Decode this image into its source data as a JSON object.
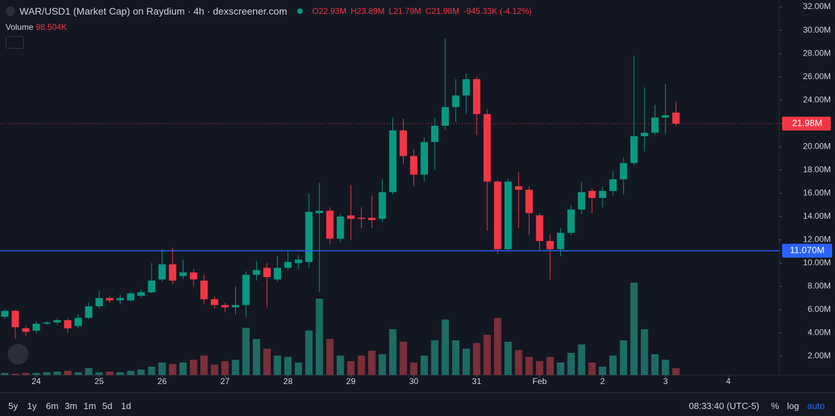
{
  "header": {
    "title": "WAR/USD1 (Market Cap) on Raydium · 4h · dexscreener.com",
    "ohlc": [
      "O22.93M",
      "H23.89M",
      "L21.79M",
      "C21.98M",
      "-945.33K (-4.12%)"
    ],
    "volume_label": "Volume",
    "volume_value": "98.504K"
  },
  "chart_data": {
    "type": "candlestick",
    "up_color": "#089981",
    "down_color": "#f23645",
    "volume_up_color": "#1e6b63",
    "volume_down_color": "#7a2f3a",
    "ylim": [
      0.39,
      32.6
    ],
    "yticks": [
      {
        "value": 2,
        "label": "2.00M"
      },
      {
        "value": 4,
        "label": "4.00M"
      },
      {
        "value": 6,
        "label": "6.00M"
      },
      {
        "value": 8,
        "label": "8.00M"
      },
      {
        "value": 10,
        "label": "10.00M"
      },
      {
        "value": 12,
        "label": "12.00M"
      },
      {
        "value": 14,
        "label": "14.00M"
      },
      {
        "value": 16,
        "label": "16.00M"
      },
      {
        "value": 18,
        "label": "18.00M"
      },
      {
        "value": 20,
        "label": "20.00M"
      },
      {
        "value": 22,
        "label": "22.00M"
      },
      {
        "value": 24,
        "label": "24.00M"
      },
      {
        "value": 26,
        "label": "26.00M"
      },
      {
        "value": 28,
        "label": "28.00M"
      },
      {
        "value": 30,
        "label": "30.00M"
      },
      {
        "value": 32,
        "label": "32.00M"
      }
    ],
    "xlim": [
      -0.46,
      73.86
    ],
    "xticks": [
      {
        "value": 3,
        "label": "24"
      },
      {
        "value": 9,
        "label": "25"
      },
      {
        "value": 15,
        "label": "26"
      },
      {
        "value": 21,
        "label": "27"
      },
      {
        "value": 27,
        "label": "28"
      },
      {
        "value": 33,
        "label": "29"
      },
      {
        "value": 39,
        "label": "30"
      },
      {
        "value": 45,
        "label": "31"
      },
      {
        "value": 51,
        "label": "Feb"
      },
      {
        "value": 57,
        "label": "2"
      },
      {
        "value": 63,
        "label": "3"
      },
      {
        "value": 69,
        "label": "4"
      }
    ],
    "vlim": [
      0,
      5400
    ],
    "open": [
      5.4,
      5.9,
      4.4,
      4.2,
      4.8,
      4.9,
      5.1,
      4.6,
      5.3,
      6.3,
      7.0,
      6.8,
      6.8,
      7.2,
      7.5,
      8.6,
      9.9,
      8.9,
      9.2,
      8.5,
      6.9,
      6.4,
      6.2,
      6.4,
      9.0,
      9.6,
      8.6,
      9.6,
      10.0,
      10.1,
      14.3,
      14.5,
      12.1,
      14.1,
      13.9,
      13.9,
      13.8,
      16.1,
      21.4,
      19.2,
      17.6,
      20.4,
      21.8,
      23.4,
      24.4,
      25.8,
      22.8,
      17.0,
      11.2,
      16.6,
      16.3,
      14.1,
      11.9,
      11.2,
      12.6,
      14.6,
      16.2,
      15.6,
      16.2,
      17.2,
      18.6,
      20.9,
      21.2,
      22.5,
      22.93
    ],
    "high": [
      6.0,
      6.0,
      4.6,
      5.0,
      5.0,
      5.3,
      5.3,
      5.6,
      6.6,
      7.6,
      7.2,
      7.3,
      7.5,
      7.7,
      10.0,
      11.2,
      11.3,
      10.3,
      9.5,
      9.0,
      7.1,
      6.6,
      8.0,
      9.3,
      10.2,
      10.0,
      10.6,
      11.0,
      10.7,
      16.0,
      16.9,
      14.8,
      14.2,
      16.7,
      14.8,
      15.8,
      17.2,
      22.5,
      22.4,
      19.8,
      20.8,
      22.5,
      29.3,
      25.8,
      26.3,
      26.0,
      23.2,
      17.1,
      17.2,
      17.8,
      16.6,
      14.3,
      12.5,
      13.0,
      15.0,
      17.0,
      16.4,
      16.6,
      17.9,
      19.1,
      27.8,
      25.1,
      23.6,
      25.4,
      23.89
    ],
    "low": [
      5.2,
      3.5,
      3.7,
      4.0,
      4.7,
      4.7,
      4.0,
      4.4,
      5.2,
      6.1,
      6.6,
      6.5,
      6.7,
      7.0,
      7.4,
      8.4,
      8.2,
      8.6,
      8.0,
      6.5,
      6.1,
      5.8,
      5.6,
      5.4,
      8.5,
      6.2,
      8.4,
      9.4,
      9.5,
      9.6,
      7.5,
      11.6,
      11.8,
      12.0,
      13.0,
      13.0,
      13.5,
      15.9,
      18.5,
      16.6,
      17.0,
      18.0,
      21.4,
      22.1,
      22.8,
      21.0,
      12.8,
      10.8,
      11.0,
      13.0,
      12.4,
      11.1,
      8.6,
      10.6,
      12.4,
      14.2,
      14.3,
      14.8,
      15.8,
      15.9,
      18.4,
      19.6,
      21.0,
      21.1,
      21.79
    ],
    "close": [
      5.9,
      4.5,
      4.1,
      4.8,
      4.9,
      5.1,
      4.4,
      5.3,
      6.3,
      7.0,
      6.8,
      7.0,
      7.4,
      7.5,
      8.5,
      9.9,
      8.5,
      9.2,
      8.6,
      6.9,
      6.4,
      6.2,
      6.4,
      9.0,
      9.4,
      8.8,
      9.6,
      10.1,
      10.3,
      14.4,
      14.5,
      12.1,
      14.0,
      13.8,
      13.8,
      13.7,
      16.1,
      21.4,
      19.2,
      17.6,
      20.4,
      21.8,
      23.4,
      24.4,
      25.8,
      22.8,
      17.0,
      11.2,
      17.0,
      16.3,
      14.3,
      11.9,
      11.2,
      12.6,
      14.6,
      16.1,
      15.6,
      16.2,
      17.2,
      18.6,
      20.9,
      21.2,
      22.5,
      22.7,
      21.98
    ],
    "volume": [
      30,
      20,
      30,
      30,
      40,
      50,
      60,
      40,
      100,
      40,
      50,
      40,
      60,
      80,
      120,
      180,
      160,
      180,
      220,
      280,
      150,
      200,
      220,
      680,
      520,
      380,
      280,
      260,
      180,
      640,
      1100,
      520,
      280,
      200,
      280,
      350,
      300,
      660,
      480,
      180,
      280,
      500,
      800,
      500,
      380,
      460,
      580,
      820,
      480,
      360,
      260,
      200,
      260,
      180,
      320,
      440,
      180,
      120,
      280,
      500,
      1330,
      660,
      300,
      220,
      98.504
    ],
    "last_price": 21.98,
    "last_price_label": "21.98M",
    "last_price_color": "#f23645",
    "hline": 11.07,
    "hline_label": "11.070M",
    "hline_color": "#2962ff"
  },
  "toolbar": {
    "ranges": [
      "5y",
      "1y",
      "6m",
      "3m",
      "1m",
      "5d",
      "1d"
    ],
    "time": "08:33:40 (UTC-5)",
    "percent": "%",
    "log": "log",
    "auto": "auto"
  }
}
